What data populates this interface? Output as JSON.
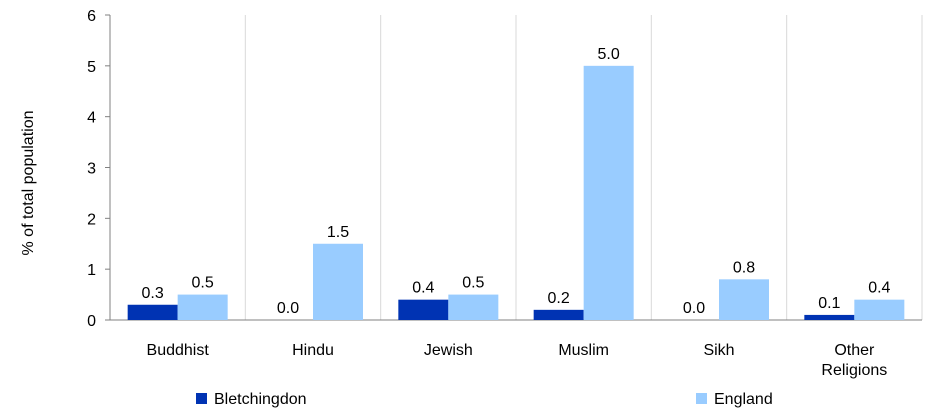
{
  "chart_data": {
    "type": "bar",
    "categories": [
      "Buddhist",
      "Hindu",
      "Jewish",
      "Muslim",
      "Sikh",
      "Other Religions"
    ],
    "category_lines": [
      [
        "Buddhist"
      ],
      [
        "Hindu"
      ],
      [
        "Jewish"
      ],
      [
        "Muslim"
      ],
      [
        "Sikh"
      ],
      [
        "Other",
        "Religions"
      ]
    ],
    "series": [
      {
        "name": "Bletchingdon",
        "values": [
          0.3,
          0.0,
          0.4,
          0.2,
          0.0,
          0.1
        ],
        "labels": [
          "0.3",
          "0.0",
          "0.4",
          "0.2",
          "0.0",
          "0.1"
        ],
        "color": "#0033b3"
      },
      {
        "name": "England",
        "values": [
          0.5,
          1.5,
          0.5,
          5.0,
          0.8,
          0.4
        ],
        "labels": [
          "0.5",
          "1.5",
          "0.5",
          "5.0",
          "0.8",
          "0.4"
        ],
        "color": "#99ccff"
      }
    ],
    "ylabel": "% of total population",
    "ylim": [
      0,
      6
    ],
    "yticks": [
      "0",
      "1",
      "2",
      "3",
      "4",
      "5",
      "6"
    ],
    "grid": "vertical-between-categories",
    "legend_position": "bottom"
  }
}
